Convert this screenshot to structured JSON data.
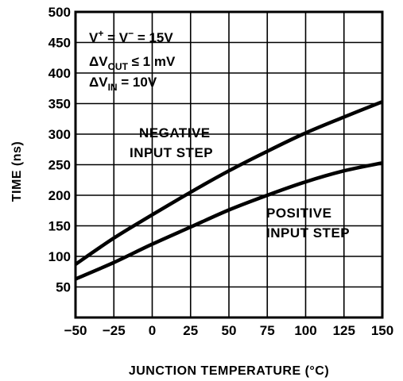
{
  "chart_data": {
    "type": "line",
    "xlabel": "JUNCTION TEMPERATURE (°C)",
    "ylabel": "TIME (ns)",
    "xlim": [
      -50,
      150
    ],
    "ylim": [
      0,
      500
    ],
    "x_ticks": [
      -50,
      -25,
      0,
      25,
      50,
      75,
      100,
      125,
      150
    ],
    "x_tick_labels": [
      "−50",
      "−25",
      "0",
      "25",
      "50",
      "75",
      "100",
      "125",
      "150"
    ],
    "y_ticks": [
      50,
      100,
      150,
      200,
      250,
      300,
      350,
      400,
      450,
      500
    ],
    "y_tick_labels": [
      "50",
      "100",
      "150",
      "200",
      "250",
      "300",
      "350",
      "400",
      "450",
      "500"
    ],
    "grid": true,
    "conditions": {
      "line1": {
        "v": "V",
        "sup_plus": "+",
        "eq": " = V",
        "sup_minus": "−",
        "value": " = 15V"
      },
      "line2": {
        "delta": "ΔV",
        "sub": "OUT",
        "rest": " ≤ 1 mV"
      },
      "line3": {
        "delta": "ΔV",
        "sub": "IN",
        "rest": " = 10V"
      }
    },
    "series": [
      {
        "label_line1": "NEGATIVE",
        "label_line2": "INPUT STEP",
        "x": [
          -50,
          -25,
          0,
          25,
          50,
          75,
          100,
          125,
          150
        ],
        "y": [
          87,
          130,
          168,
          205,
          240,
          272,
          302,
          328,
          353
        ]
      },
      {
        "label_line1": "POSITIVE",
        "label_line2": "INPUT STEP",
        "x": [
          -50,
          -25,
          0,
          25,
          50,
          75,
          100,
          125,
          150
        ],
        "y": [
          63,
          90,
          120,
          148,
          176,
          200,
          222,
          240,
          253
        ]
      }
    ]
  }
}
